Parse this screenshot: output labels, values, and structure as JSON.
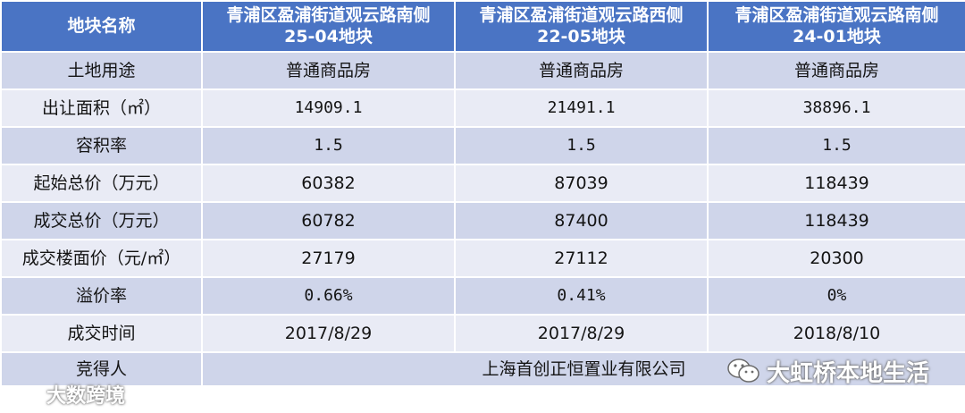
{
  "header": {
    "col0": "地块名称",
    "col1_line1": "青浦区盈浦街道观云路南侧",
    "col1_line2": "25-04地块",
    "col2_line1": "青浦区盈浦街道观云路西侧",
    "col2_line2": "22-05地块",
    "col3_line1": "青浦区盈浦街道观云路南侧",
    "col3_line2": "24-01地块"
  },
  "rows": [
    {
      "label": "土地用途",
      "v1": "普通商品房",
      "v2": "普通商品房",
      "v3": "普通商品房"
    },
    {
      "label": "出让面积（㎡）",
      "v1": "14909.1",
      "v2": "21491.1",
      "v3": "38896.1"
    },
    {
      "label": "容积率",
      "v1": "1.5",
      "v2": "1.5",
      "v3": "1.5"
    },
    {
      "label": "起始总价（万元）",
      "v1": "60382",
      "v2": "87039",
      "v3": "118439"
    },
    {
      "label": "成交总价（万元）",
      "v1": "60782",
      "v2": "87400",
      "v3": "118439"
    },
    {
      "label": "成交楼面价（元/㎡）",
      "v1": "27179",
      "v2": "27112",
      "v3": "20300"
    },
    {
      "label": "溢价率",
      "v1": "0.66%",
      "v2": "0.41%",
      "v3": "0%"
    },
    {
      "label": "成交时间",
      "v1": "2017/8/29",
      "v2": "2017/8/29",
      "v3": "2018/8/10"
    }
  ],
  "winner": {
    "label": "竞得人",
    "value": "上海首创正恒置业有限公司"
  },
  "watermarks": {
    "right": "大虹桥本地生活",
    "right_icon": "wechat-icon",
    "left": "大数跨境",
    "left_icon": "brand-logo-icon"
  },
  "colors": {
    "header": "#4a74c4",
    "row_odd": "#cfd5ea",
    "row_even": "#e9ebf5"
  }
}
